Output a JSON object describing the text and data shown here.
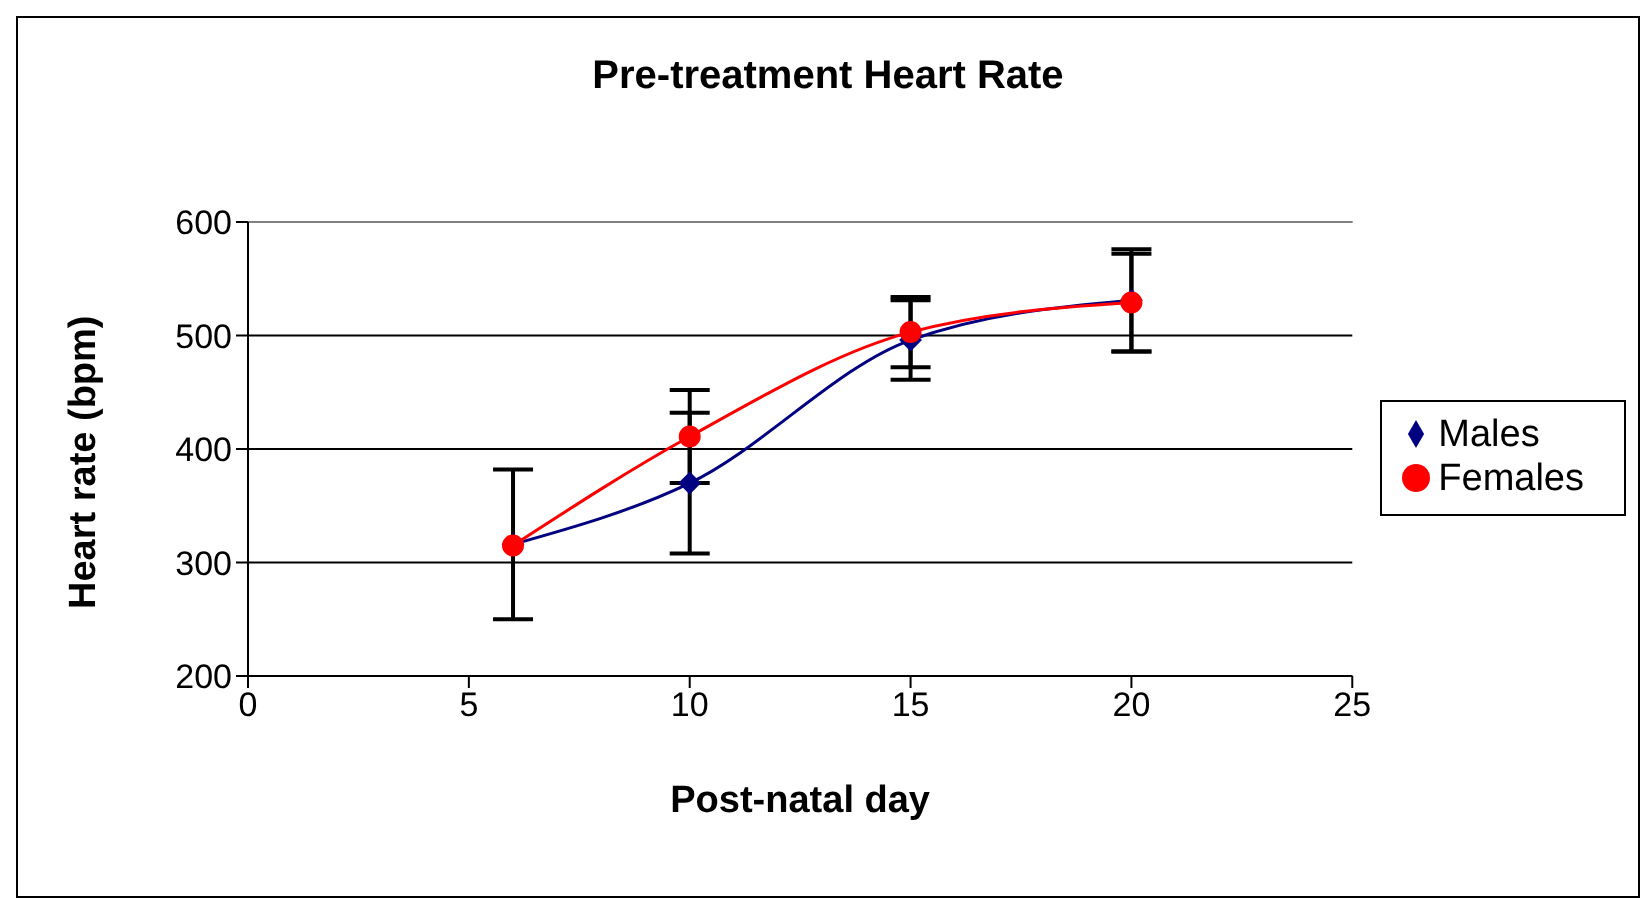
{
  "chart_data": {
    "type": "line",
    "title": "Pre-treatment Heart Rate",
    "xlabel": "Post-natal day",
    "ylabel": "Heart rate (bpm)",
    "x": [
      6,
      10,
      15,
      20
    ],
    "series": [
      {
        "name": "Males",
        "color": "#000080",
        "marker": "diamond",
        "values": [
          316,
          370,
          496,
          531
        ],
        "errors": [
          66,
          62,
          35,
          45
        ]
      },
      {
        "name": "Females",
        "color": "#ff0000",
        "marker": "circle",
        "values": [
          315,
          411,
          503,
          529
        ],
        "errors": [
          null,
          41,
          31,
          43
        ]
      }
    ],
    "xlim": [
      0,
      25
    ],
    "xticks": [
      0,
      5,
      10,
      15,
      20,
      25
    ],
    "ylim": [
      200,
      600
    ],
    "yticks": [
      200,
      300,
      400,
      500,
      600
    ],
    "grid": "y",
    "legend": "right"
  }
}
